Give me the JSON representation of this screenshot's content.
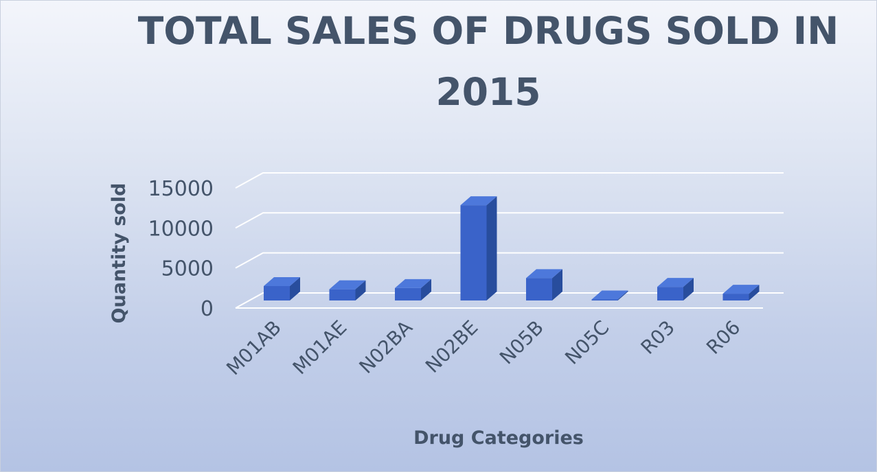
{
  "chart_data": {
    "type": "bar",
    "title_lines": [
      "TOTAL SALES OF DRUGS SOLD IN",
      "2015"
    ],
    "xlabel": "Drug Categories",
    "ylabel": "Quantity sold",
    "categories": [
      "M01AB",
      "M01AE",
      "N02BA",
      "N02BE",
      "N05B",
      "N05C",
      "R03",
      "R06"
    ],
    "values": [
      1800,
      1400,
      1550,
      11900,
      2800,
      50,
      1700,
      850
    ],
    "yticks": [
      0,
      5000,
      10000,
      15000
    ],
    "ylim": [
      0,
      15000
    ],
    "grid": true,
    "legend": "none",
    "style": "3d-clustered-column",
    "colors": {
      "bar_front": "#3a63c9",
      "bar_top": "#4d78db",
      "bar_side": "#284d9d",
      "text": "#44546a",
      "grid": "#ffffff"
    }
  }
}
